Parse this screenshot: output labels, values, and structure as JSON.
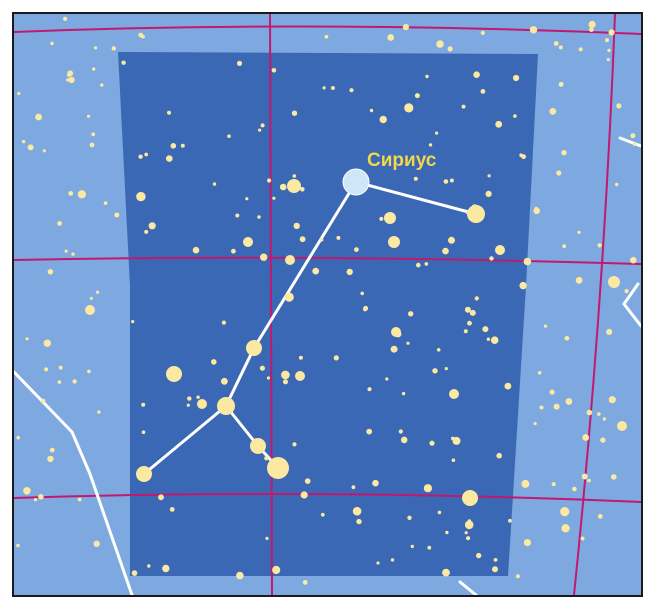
{
  "map": {
    "brightest_star_label": "Сириус",
    "colors": {
      "sky_background": "#7ea8e0",
      "constellation_region": "#3a68b4",
      "grid_lines": "#c2186e",
      "stars": "#fbe9a2",
      "sirius": "#cfe6f7",
      "constellation_lines": "#ffffff",
      "label": "#f2d64b"
    }
  }
}
